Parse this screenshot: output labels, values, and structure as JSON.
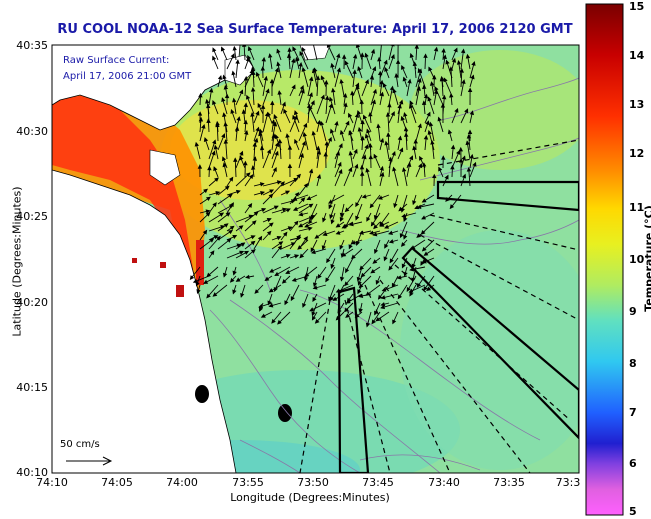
{
  "title": "RU COOL  NOAA-12  Sea Surface Temperature:  April 17, 2006 2120 GMT",
  "legend": {
    "line1": "Raw Surface Current:",
    "line2": "April 17, 2006 21:00 GMT"
  },
  "scale_label": "50 cm/s",
  "axes": {
    "xlabel": "Longitude (Degrees:Minutes)",
    "ylabel": "Latitude (Degrees:Minutes)",
    "x_ticks": [
      "74:10",
      "74:05",
      "74:00",
      "73:55",
      "73:50",
      "73:45",
      "73:40",
      "73:35",
      "73:3"
    ],
    "y_ticks": [
      "40:35",
      "40:30",
      "40:25",
      "40:20",
      "40:15",
      "40:10"
    ]
  },
  "colorbar": {
    "label": "Temperature (°C)",
    "ticks": [
      "15",
      "14",
      "13",
      "12",
      "11",
      "10",
      "9",
      "8",
      "7",
      "6",
      "5"
    ],
    "min": 5,
    "max": 15
  },
  "colors": {
    "title": "#1a1aa8",
    "ocean": "#8fe0a0",
    "land": "#ffffff"
  }
}
